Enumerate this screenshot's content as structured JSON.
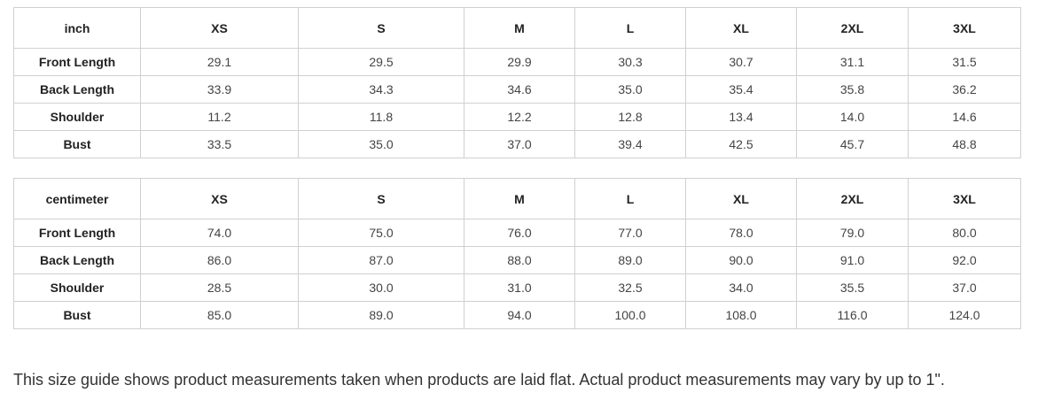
{
  "tables": [
    {
      "unit": "inch",
      "sizes": [
        "XS",
        "S",
        "M",
        "L",
        "XL",
        "2XL",
        "3XL"
      ],
      "rows": [
        {
          "label": "Front Length",
          "values": [
            "29.1",
            "29.5",
            "29.9",
            "30.3",
            "30.7",
            "31.1",
            "31.5"
          ]
        },
        {
          "label": "Back Length",
          "values": [
            "33.9",
            "34.3",
            "34.6",
            "35.0",
            "35.4",
            "35.8",
            "36.2"
          ]
        },
        {
          "label": "Shoulder",
          "values": [
            "11.2",
            "11.8",
            "12.2",
            "12.8",
            "13.4",
            "14.0",
            "14.6"
          ]
        },
        {
          "label": "Bust",
          "values": [
            "33.5",
            "35.0",
            "37.0",
            "39.4",
            "42.5",
            "45.7",
            "48.8"
          ]
        }
      ]
    },
    {
      "unit": "centimeter",
      "sizes": [
        "XS",
        "S",
        "M",
        "L",
        "XL",
        "2XL",
        "3XL"
      ],
      "rows": [
        {
          "label": "Front Length",
          "values": [
            "74.0",
            "75.0",
            "76.0",
            "77.0",
            "78.0",
            "79.0",
            "80.0"
          ]
        },
        {
          "label": "Back Length",
          "values": [
            "86.0",
            "87.0",
            "88.0",
            "89.0",
            "90.0",
            "91.0",
            "92.0"
          ]
        },
        {
          "label": "Shoulder",
          "values": [
            "28.5",
            "30.0",
            "31.0",
            "32.5",
            "34.0",
            "35.5",
            "37.0"
          ]
        },
        {
          "label": "Bust",
          "values": [
            "85.0",
            "89.0",
            "94.0",
            "100.0",
            "108.0",
            "116.0",
            "124.0"
          ]
        }
      ]
    }
  ],
  "note": "This size guide shows product measurements taken when products are laid flat. Actual product measurements may vary by up to 1\"."
}
